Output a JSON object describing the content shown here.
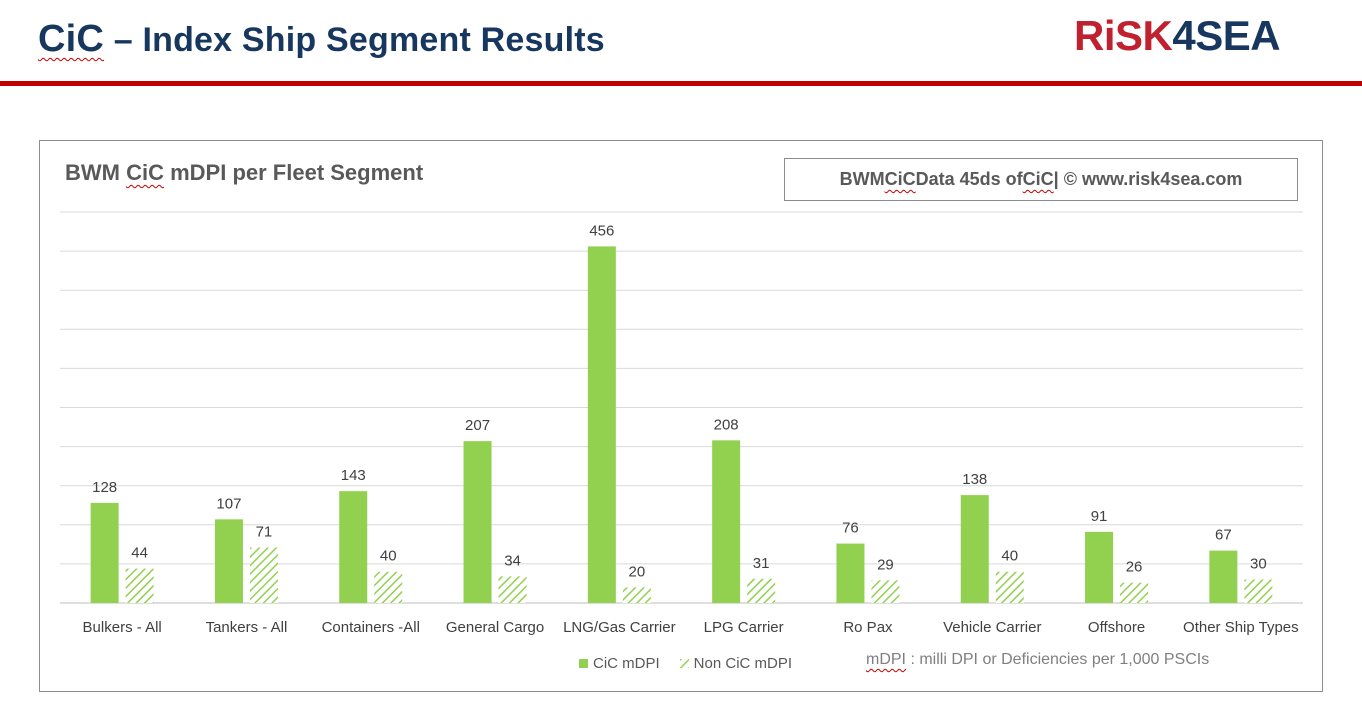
{
  "header": {
    "title_cic": "CiC",
    "title_rest": " – Index Ship Segment Results",
    "logo_red": "RiSK",
    "logo_navy": "4SEA"
  },
  "source_box": {
    "part1": "BWM ",
    "cic1": "CiC",
    "part2": " Data 45ds of ",
    "cic2": "CiC",
    "part3": "  | © www.risk4sea.com"
  },
  "footnote": {
    "abbr": "mDPI",
    "rest": " : milli DPI or Deficiencies per 1,000 PSCIs"
  },
  "colors": {
    "brand_red": "#c00000",
    "brand_navy": "#17375e",
    "cic_green": "#92d050"
  },
  "chart_data": {
    "type": "bar",
    "title_prefix": "BWM ",
    "title_cic": "CiC",
    "title_suffix": " mDPI per Fleet Segment",
    "categories": [
      "Bulkers - All",
      "Tankers - All",
      "Containers -All",
      "General Cargo",
      "LNG/Gas Carrier",
      "LPG Carrier",
      "Ro Pax",
      "Vehicle Carrier",
      "Offshore",
      "Other Ship Types"
    ],
    "series": [
      {
        "name": "CiC mDPI",
        "values": [
          128,
          107,
          143,
          207,
          456,
          208,
          76,
          138,
          91,
          67
        ],
        "pattern": "solid"
      },
      {
        "name": "Non CiC mDPI",
        "values": [
          44,
          71,
          40,
          34,
          20,
          31,
          29,
          40,
          26,
          30
        ],
        "pattern": "hatched"
      }
    ],
    "ylim": [
      0,
      500
    ],
    "ygrid_step": 50,
    "grid": true,
    "legend": "bottom-center"
  }
}
